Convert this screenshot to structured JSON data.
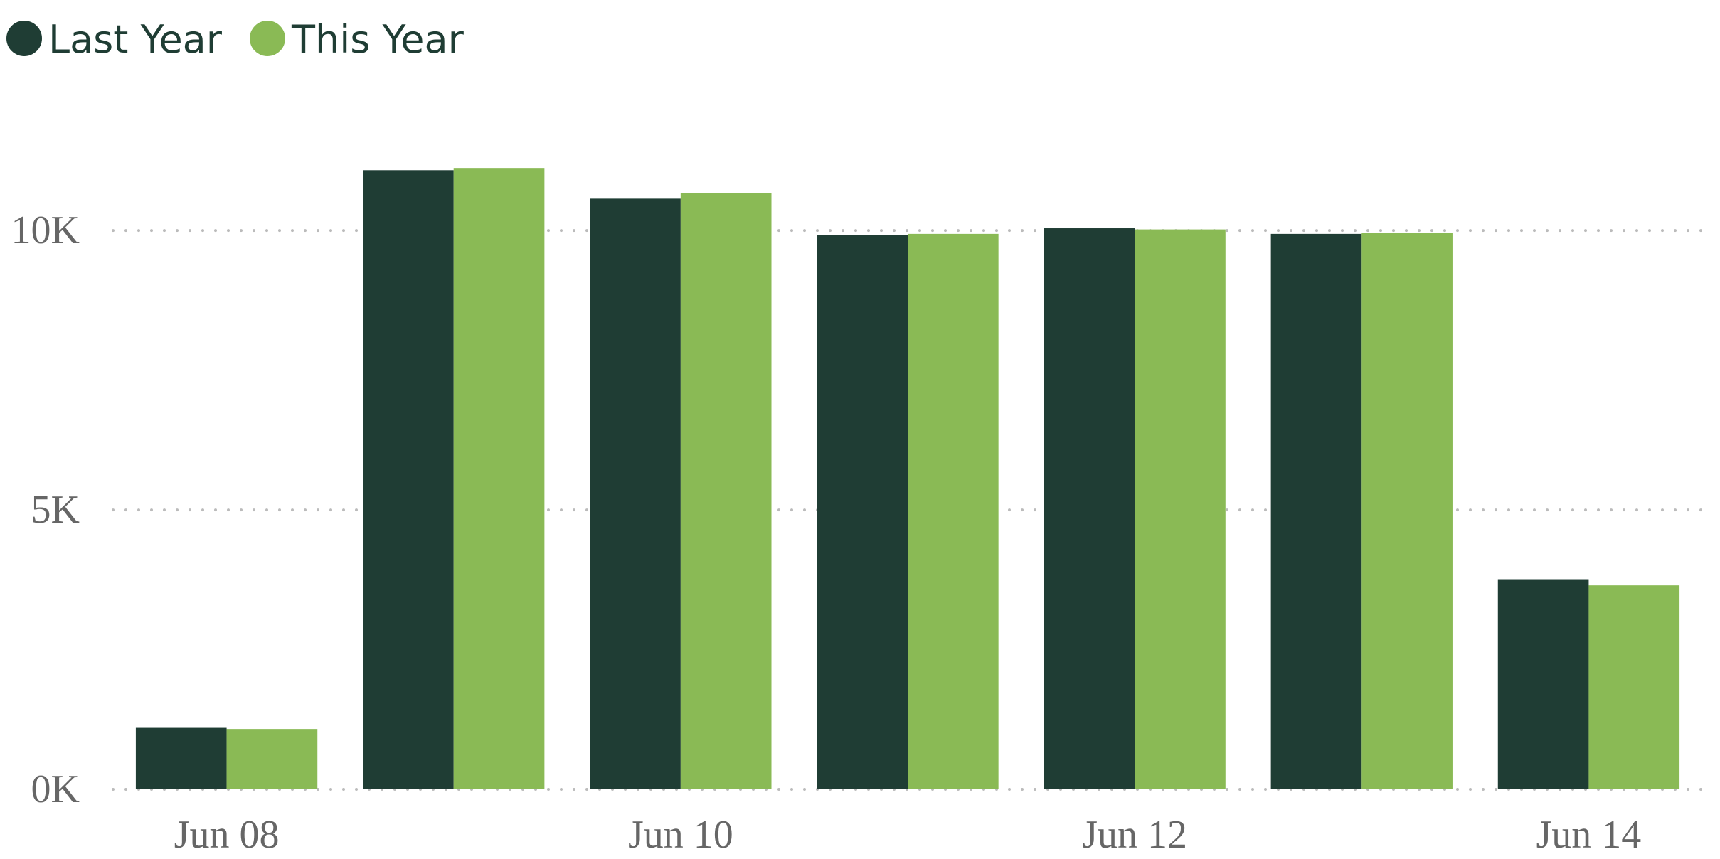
{
  "chart_data": {
    "type": "bar",
    "categories": [
      "Jun 08",
      null,
      "Jun 10",
      null,
      "Jun 12",
      null,
      "Jun 14"
    ],
    "series": [
      {
        "name": "Last Year",
        "color": "#1f3d34",
        "values": [
          1100,
          11080,
          10570,
          9920,
          10040,
          9940,
          3760
        ]
      },
      {
        "name": "This Year",
        "color": "#8aba55",
        "values": [
          1080,
          11120,
          10670,
          9940,
          10020,
          9960,
          3650
        ]
      }
    ],
    "ylim": [
      0,
      12000
    ],
    "yticks": [
      {
        "value": 0,
        "label": "0K"
      },
      {
        "value": 5000,
        "label": "5K"
      },
      {
        "value": 10000,
        "label": "10K"
      }
    ],
    "grid": true,
    "legend": "top-left"
  }
}
